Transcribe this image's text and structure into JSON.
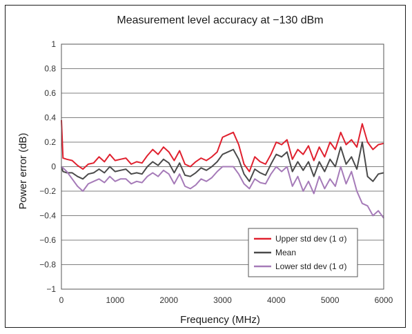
{
  "chart_data": {
    "type": "line",
    "title": "Measurement level accuracy at −130 dBm",
    "xlabel": "Frequency (MHz)",
    "ylabel": "Power error (dB)",
    "xlim": [
      0,
      6000
    ],
    "ylim": [
      -1,
      1
    ],
    "x_ticks": [
      0,
      1000,
      2000,
      3000,
      4000,
      5000,
      6000
    ],
    "y_ticks": [
      1,
      0.8,
      0.6,
      0.4,
      0.2,
      0,
      -0.2,
      -0.4,
      -0.6,
      -0.8,
      -1
    ],
    "y_tick_labels": [
      "1",
      "0.8",
      "0.6",
      "0.4",
      "0.2",
      "0",
      "−0.2",
      "−0.4",
      "−0.6",
      "−0.8",
      "−1"
    ],
    "grid": "horizontal",
    "legend_position": "bottom-right",
    "x": [
      0,
      30,
      100,
      200,
      300,
      400,
      500,
      600,
      700,
      800,
      900,
      1000,
      1100,
      1200,
      1300,
      1400,
      1500,
      1600,
      1700,
      1800,
      1900,
      2000,
      2100,
      2200,
      2300,
      2400,
      2500,
      2600,
      2700,
      2800,
      2900,
      3000,
      3100,
      3200,
      3300,
      3400,
      3500,
      3600,
      3700,
      3800,
      3900,
      4000,
      4100,
      4200,
      4300,
      4400,
      4500,
      4600,
      4700,
      4800,
      4900,
      5000,
      5100,
      5200,
      5300,
      5400,
      5500,
      5600,
      5700,
      5800,
      5900,
      6000
    ],
    "series": [
      {
        "name": "Upper std dev (1 σ)",
        "color": "#e0202e",
        "values": [
          0.38,
          0.07,
          0.06,
          0.05,
          0.01,
          -0.02,
          0.02,
          0.03,
          0.08,
          0.04,
          0.1,
          0.05,
          0.06,
          0.07,
          0.02,
          0.04,
          0.03,
          0.09,
          0.14,
          0.1,
          0.16,
          0.12,
          0.05,
          0.13,
          0.02,
          0.0,
          0.04,
          0.07,
          0.05,
          0.08,
          0.12,
          0.24,
          0.26,
          0.28,
          0.18,
          0.02,
          -0.04,
          0.08,
          0.04,
          0.02,
          0.1,
          0.2,
          0.18,
          0.22,
          0.06,
          0.14,
          0.1,
          0.17,
          0.05,
          0.16,
          0.08,
          0.2,
          0.14,
          0.28,
          0.18,
          0.22,
          0.16,
          0.35,
          0.2,
          0.14,
          0.18,
          0.19
        ]
      },
      {
        "name": "Mean",
        "color": "#4a4a4a",
        "values": [
          0.0,
          -0.04,
          -0.05,
          -0.05,
          -0.08,
          -0.1,
          -0.06,
          -0.05,
          -0.02,
          -0.05,
          0.0,
          -0.04,
          -0.03,
          -0.02,
          -0.06,
          -0.05,
          -0.06,
          0.0,
          0.04,
          0.01,
          0.06,
          0.03,
          -0.05,
          0.03,
          -0.07,
          -0.08,
          -0.05,
          -0.01,
          -0.03,
          0.0,
          0.04,
          0.1,
          0.12,
          0.14,
          0.06,
          -0.06,
          -0.12,
          -0.02,
          -0.05,
          -0.07,
          0.02,
          0.1,
          0.08,
          0.12,
          -0.04,
          0.04,
          -0.03,
          0.04,
          -0.08,
          0.04,
          -0.04,
          0.06,
          0.0,
          0.16,
          0.02,
          0.08,
          -0.02,
          0.2,
          -0.08,
          -0.12,
          -0.06,
          -0.05
        ]
      },
      {
        "name": "Lower std dev (1 σ)",
        "color": "#a57ab8",
        "values": [
          0.0,
          -0.01,
          -0.04,
          -0.1,
          -0.16,
          -0.2,
          -0.14,
          -0.12,
          -0.1,
          -0.13,
          -0.08,
          -0.12,
          -0.1,
          -0.1,
          -0.14,
          -0.12,
          -0.13,
          -0.08,
          -0.05,
          -0.08,
          -0.03,
          -0.06,
          -0.14,
          -0.06,
          -0.16,
          -0.18,
          -0.15,
          -0.1,
          -0.12,
          -0.09,
          -0.04,
          0.0,
          0.0,
          0.0,
          -0.06,
          -0.14,
          -0.18,
          -0.1,
          -0.13,
          -0.14,
          -0.06,
          0.0,
          -0.04,
          0.0,
          -0.16,
          -0.08,
          -0.2,
          -0.12,
          -0.22,
          -0.08,
          -0.18,
          -0.1,
          -0.16,
          0.0,
          -0.14,
          -0.04,
          -0.2,
          -0.3,
          -0.32,
          -0.4,
          -0.36,
          -0.42
        ]
      }
    ]
  }
}
